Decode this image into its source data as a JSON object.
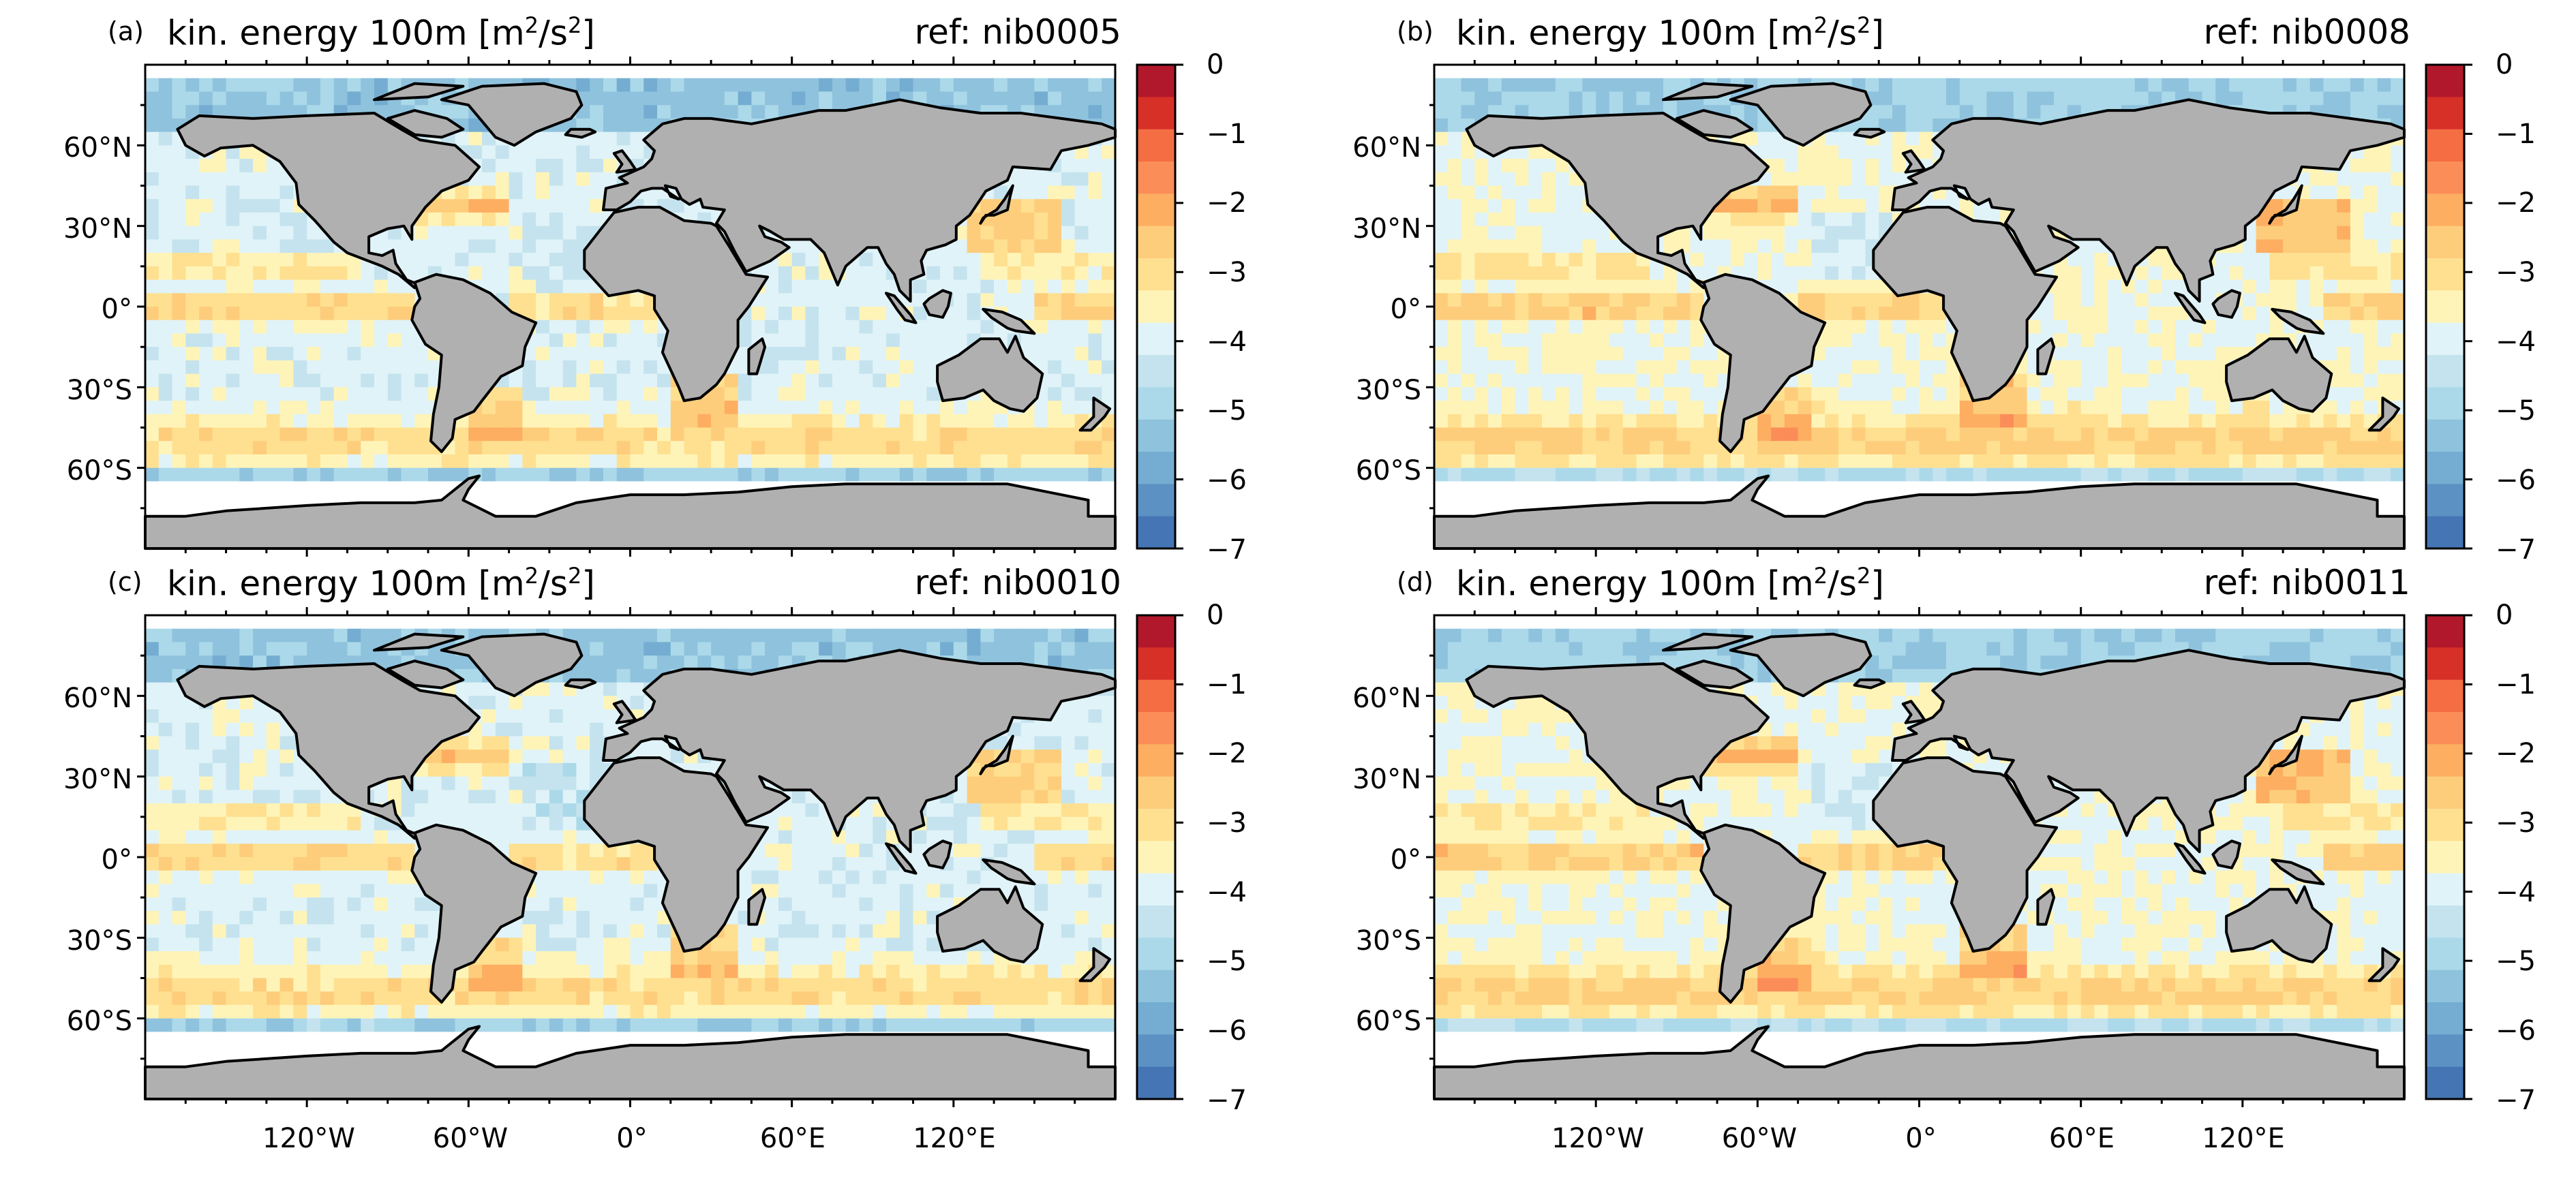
{
  "figure": {
    "title_pre": "kin. energy 100m [m",
    "title_sup1": "2",
    "title_mid": "/s",
    "title_sup2": "2",
    "title_post": "]",
    "lat_labels": [
      "60°N",
      "30°N",
      "0°",
      "30°S",
      "60°S"
    ],
    "lon_labels": [
      "120°W",
      "60°W",
      "0°",
      "60°E",
      "120°E"
    ],
    "colorbar_labels": [
      "0",
      "−1",
      "−2",
      "−3",
      "−4",
      "−5",
      "−6",
      "−7"
    ],
    "colorbar_colors": [
      "#b2182b",
      "#d73027",
      "#f46d43",
      "#fb8d59",
      "#fdae61",
      "#fdcd7c",
      "#fee090",
      "#fff4b8",
      "#e0f3f8",
      "#c4e3ee",
      "#abd9e9",
      "#8fc2dd",
      "#74add1",
      "#5c91c4",
      "#4575b4"
    ],
    "land_color": "#b0b0b0",
    "ice_color": "#ffffff",
    "coast_color": "#000000"
  },
  "panels": [
    {
      "letter": "(a)",
      "ref": "ref: nib0005"
    },
    {
      "letter": "(b)",
      "ref": "ref: nib0008"
    },
    {
      "letter": "(c)",
      "ref": "ref: nib0010"
    },
    {
      "letter": "(d)",
      "ref": "ref: nib0011"
    }
  ]
}
